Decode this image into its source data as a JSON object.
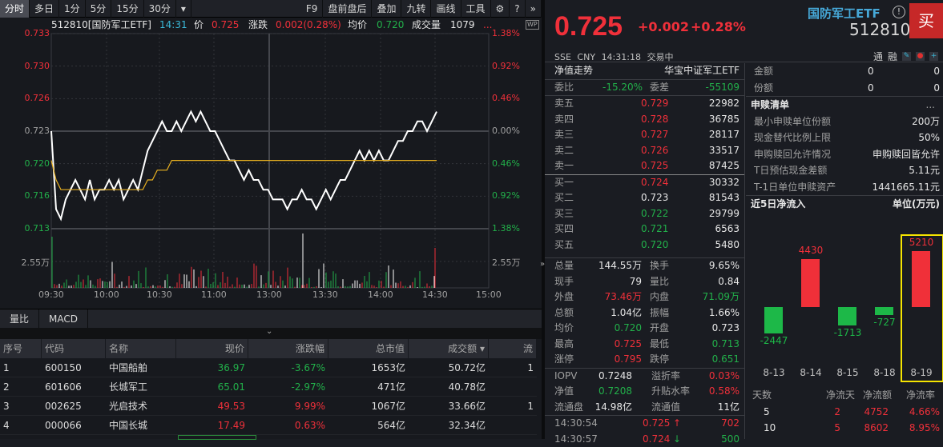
{
  "toolbar": {
    "left_tabs": [
      "分时",
      "多日",
      "1分",
      "5分",
      "15分",
      "30分"
    ],
    "active": "分时",
    "dropdown": "▾",
    "right_items": [
      "F9",
      "盘前盘后",
      "叠加",
      "九转",
      "画线",
      "工具"
    ],
    "settings_icon": "⚙",
    "help_icon": "?",
    "more_icon": "»"
  },
  "infobar": {
    "symbol": "512810[国防军工ETF]",
    "time": "14:31",
    "price_label": "价",
    "price": "0.725",
    "change_label": "涨跌",
    "change": "0.002(0.28%)",
    "avg_label": "均价",
    "avg": "0.720",
    "volume_label": "成交量",
    "volume": "1079",
    "more": "...",
    "wp_badge": "WP"
  },
  "chart_data": {
    "type": "line",
    "title": "512810[国防军工ETF] 分时",
    "y_left_ticks": [
      "0.733",
      "0.730",
      "0.726",
      "0.723",
      "0.720",
      "0.716",
      "0.713"
    ],
    "y_right_ticks": [
      "1.38%",
      "0.92%",
      "0.46%",
      "0.00%",
      "0.46%",
      "0.92%",
      "1.38%"
    ],
    "x_ticks": [
      "09:30",
      "10:00",
      "10:30",
      "11:00",
      "13:00",
      "13:30",
      "14:00",
      "14:30",
      "15:00"
    ],
    "volume_tick": "2.55万",
    "prev_close": 0.723,
    "series": [
      {
        "name": "价格",
        "color": "#ffffff",
        "values": [
          0.723,
          0.715,
          0.714,
          0.716,
          0.717,
          0.718,
          0.717,
          0.716,
          0.718,
          0.716,
          0.717,
          0.717,
          0.718,
          0.717,
          0.718,
          0.716,
          0.717,
          0.718,
          0.717,
          0.719,
          0.721,
          0.722,
          0.723,
          0.724,
          0.723,
          0.723,
          0.724,
          0.723,
          0.724,
          0.725,
          0.724,
          0.725,
          0.724,
          0.723,
          0.723,
          0.722,
          0.721,
          0.72,
          0.72,
          0.719,
          0.718,
          0.719,
          0.718,
          0.718,
          0.717,
          0.717,
          0.716,
          0.716,
          0.716,
          0.715,
          0.716,
          0.716,
          0.717,
          0.716,
          0.716,
          0.715,
          0.716,
          0.717,
          0.716,
          0.717,
          0.718,
          0.718,
          0.719,
          0.72,
          0.721,
          0.72,
          0.721,
          0.72,
          0.721,
          0.72,
          0.72,
          0.721,
          0.722,
          0.722,
          0.723,
          0.723,
          0.724,
          0.724,
          0.723,
          0.724,
          0.725
        ]
      },
      {
        "name": "均价",
        "color": "#e8b020",
        "values": [
          0.72,
          0.718,
          0.717,
          0.717,
          0.717,
          0.717,
          0.717,
          0.717,
          0.717,
          0.717,
          0.717,
          0.717,
          0.717,
          0.717,
          0.717,
          0.717,
          0.717,
          0.717,
          0.717,
          0.717,
          0.718,
          0.718,
          0.719,
          0.719,
          0.719,
          0.72,
          0.72,
          0.72,
          0.72,
          0.72,
          0.72,
          0.72,
          0.72,
          0.72,
          0.72,
          0.72,
          0.72,
          0.72,
          0.72,
          0.72,
          0.72,
          0.72,
          0.72,
          0.72,
          0.72,
          0.72,
          0.72,
          0.72,
          0.72,
          0.72,
          0.72,
          0.72,
          0.72,
          0.72,
          0.72,
          0.72,
          0.72,
          0.72,
          0.72,
          0.72,
          0.72,
          0.72,
          0.72,
          0.72,
          0.72,
          0.72,
          0.72,
          0.72,
          0.72,
          0.72,
          0.72,
          0.72,
          0.72,
          0.72,
          0.72,
          0.72,
          0.72,
          0.72,
          0.72,
          0.72,
          0.72
        ]
      }
    ]
  },
  "subtabs": [
    "量比",
    "MACD"
  ],
  "table": {
    "headers": [
      "序号",
      "代码",
      "名称",
      "现价",
      "涨跌幅",
      "总市值",
      "成交额 ▾",
      "流"
    ],
    "rows": [
      {
        "idx": "1",
        "code": "600150",
        "name": "中国船舶",
        "price": "36.97",
        "pct": "-3.67%",
        "cap": "1653亿",
        "amt": "50.72亿",
        "extra": "1",
        "dir": "green"
      },
      {
        "idx": "2",
        "code": "601606",
        "name": "长城军工",
        "price": "65.01",
        "pct": "-2.97%",
        "cap": "471亿",
        "amt": "40.78亿",
        "extra": "",
        "dir": "green"
      },
      {
        "idx": "3",
        "code": "002625",
        "name": "光启技术",
        "price": "49.53",
        "pct": "9.99%",
        "cap": "1067亿",
        "amt": "33.66亿",
        "extra": "1",
        "dir": "red"
      },
      {
        "idx": "4",
        "code": "000066",
        "name": "中国长城",
        "price": "17.49",
        "pct": "0.63%",
        "cap": "564亿",
        "amt": "32.34亿",
        "extra": "",
        "dir": "red"
      }
    ]
  },
  "quote": {
    "price": "0.725",
    "change": "+0.002",
    "change_pct": "+0.28%",
    "name": "国防军工ETF",
    "code": "512810",
    "buy": "买",
    "exchange": "SSE",
    "currency": "CNY",
    "time": "14:31:18",
    "status": "交易中",
    "tags": [
      "通",
      "融"
    ]
  },
  "book": {
    "nav_label": "净值走势",
    "fund_name": "华宝中证军工ETF",
    "ratio_label": "委比",
    "ratio": "-15.20%",
    "diff_label": "委差",
    "diff": "-55109",
    "asks": [
      {
        "label": "卖五",
        "price": "0.729",
        "vol": "22982",
        "dir": "red"
      },
      {
        "label": "卖四",
        "price": "0.728",
        "vol": "36785",
        "dir": "red"
      },
      {
        "label": "卖三",
        "price": "0.727",
        "vol": "28117",
        "dir": "red"
      },
      {
        "label": "卖二",
        "price": "0.726",
        "vol": "33517",
        "dir": "red"
      },
      {
        "label": "卖一",
        "price": "0.725",
        "vol": "87425",
        "dir": "red"
      }
    ],
    "bids": [
      {
        "label": "买一",
        "price": "0.724",
        "vol": "30332",
        "dir": "red"
      },
      {
        "label": "买二",
        "price": "0.723",
        "vol": "81543",
        "dir": "white"
      },
      {
        "label": "买三",
        "price": "0.722",
        "vol": "29799",
        "dir": "green"
      },
      {
        "label": "买四",
        "price": "0.721",
        "vol": "6563",
        "dir": "green"
      },
      {
        "label": "买五",
        "price": "0.720",
        "vol": "5480",
        "dir": "green"
      }
    ],
    "stats": [
      [
        "总量",
        "144.55万",
        "white",
        "换手",
        "9.65%",
        "white"
      ],
      [
        "现手",
        "79",
        "white",
        "量比",
        "0.84",
        "white"
      ],
      [
        "外盘",
        "73.46万",
        "red",
        "内盘",
        "71.09万",
        "green"
      ],
      [
        "总额",
        "1.04亿",
        "white",
        "振幅",
        "1.66%",
        "white"
      ],
      [
        "均价",
        "0.720",
        "green",
        "开盘",
        "0.723",
        "white"
      ],
      [
        "最高",
        "0.725",
        "red",
        "最低",
        "0.713",
        "green"
      ],
      [
        "涨停",
        "0.795",
        "red",
        "跌停",
        "0.651",
        "green"
      ]
    ],
    "etf_stats": [
      [
        "IOPV",
        "0.7248",
        "white",
        "溢折率",
        "0.03%",
        "red"
      ],
      [
        "净值",
        "0.7208",
        "green",
        "升贴水率",
        "0.58%",
        "red"
      ],
      [
        "流通盘",
        "14.98亿",
        "white",
        "流通值",
        "11亿",
        "white"
      ]
    ],
    "ticks": [
      {
        "time": "14:30:54",
        "price": "0.725",
        "arrow": "↑",
        "vol": "702"
      },
      {
        "time": "14:30:57",
        "price": "0.724",
        "arrow": "↓",
        "vol": "500"
      }
    ]
  },
  "side": {
    "rows": [
      [
        "金额",
        "0",
        "0"
      ],
      [
        "份额",
        "0",
        "0"
      ]
    ],
    "list_title": "申赎清单",
    "list_more": "...",
    "list": [
      [
        "最小申赎单位份额",
        "200万"
      ],
      [
        "现金替代比例上限",
        "50%"
      ],
      [
        "申购赎回允许情况",
        "申购赎回皆允许"
      ],
      [
        "T日预估现金差额",
        "5.11元"
      ],
      [
        "T-1日单位申赎资产",
        "1441665.11元"
      ]
    ],
    "flow_title": "近5日净流入",
    "flow_unit": "单位(万元)",
    "flow": [
      {
        "date": "8-13",
        "value": -2447
      },
      {
        "date": "8-14",
        "value": 4430
      },
      {
        "date": "8-15",
        "value": -1713
      },
      {
        "date": "8-18",
        "value": -727
      },
      {
        "date": "8-19",
        "value": 5210
      }
    ],
    "flow_table_headers": [
      "天数",
      "净流天",
      "净流额",
      "净流率"
    ],
    "flow_table": [
      [
        "5",
        "2",
        "4752",
        "4.66%"
      ],
      [
        "10",
        "5",
        "8602",
        "8.95%"
      ]
    ]
  }
}
